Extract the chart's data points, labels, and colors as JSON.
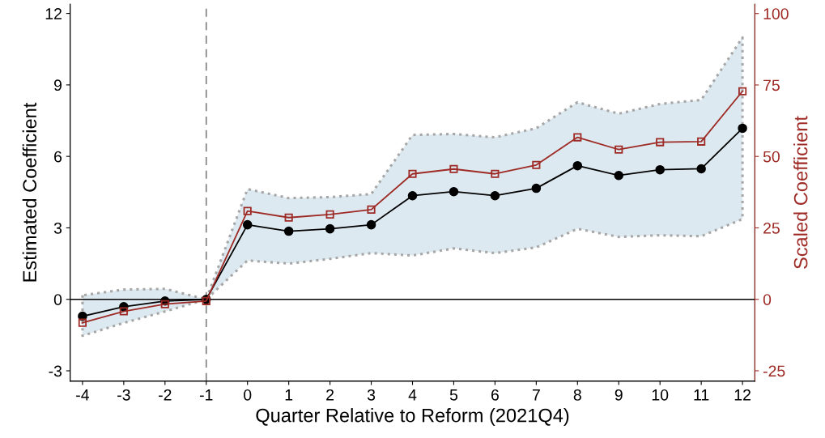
{
  "chart_data": {
    "type": "line",
    "xlabel": "Quarter Relative to Reform (2021Q4)",
    "ylabel": "Estimated Coefficient",
    "y2label": "Scaled Coefficient",
    "x": [
      -4,
      -3,
      -2,
      -1,
      0,
      1,
      2,
      3,
      4,
      5,
      6,
      7,
      8,
      9,
      10,
      11,
      12
    ],
    "series": [
      {
        "color": "#000000",
        "marker": "circle",
        "values": [
          -0.71,
          -0.31,
          -0.07,
          0,
          3.13,
          2.86,
          2.96,
          3.13,
          4.35,
          4.52,
          4.35,
          4.66,
          5.61,
          5.2,
          5.44,
          5.48,
          7.18
        ],
        "lower": [
          -1.53,
          -0.99,
          -0.51,
          0,
          1.63,
          1.5,
          1.7,
          1.94,
          1.84,
          2.14,
          1.94,
          2.18,
          2.96,
          2.62,
          2.69,
          2.65,
          3.37
        ],
        "upper": [
          0.17,
          0.41,
          0.44,
          0,
          4.63,
          4.25,
          4.29,
          4.42,
          6.9,
          6.94,
          6.8,
          7.18,
          8.27,
          7.79,
          8.2,
          8.37,
          10.99
        ]
      },
      {
        "color": "#9e2a25",
        "marker": "square",
        "axis": "y2",
        "values": [
          -8.2,
          -4.2,
          -1.7,
          -0.6,
          30.9,
          28.6,
          29.7,
          31.4,
          43.9,
          45.6,
          43.9,
          47.0,
          56.7,
          52.4,
          55.0,
          55.2,
          72.8
        ]
      }
    ],
    "xlim": [
      -4.3,
      12.3
    ],
    "xticks": [
      -4,
      -3,
      -2,
      -1,
      0,
      1,
      2,
      3,
      4,
      5,
      6,
      7,
      8,
      9,
      10,
      11,
      12
    ],
    "ylim": [
      -3.43,
      12.38
    ],
    "yticks": [
      -3,
      0,
      3,
      6,
      9,
      12
    ],
    "y2lim": [
      -28.6,
      103.2
    ],
    "y2ticks": [
      -25,
      0,
      25,
      50,
      75,
      100
    ],
    "ref_lines": [
      {
        "axis": "y",
        "value": 0,
        "color": "#000000",
        "line_style": "solid"
      },
      {
        "axis": "x",
        "value": -1,
        "color": "#7f7f7f",
        "line_style": "dashed"
      }
    ],
    "grid": false,
    "legend": false
  }
}
